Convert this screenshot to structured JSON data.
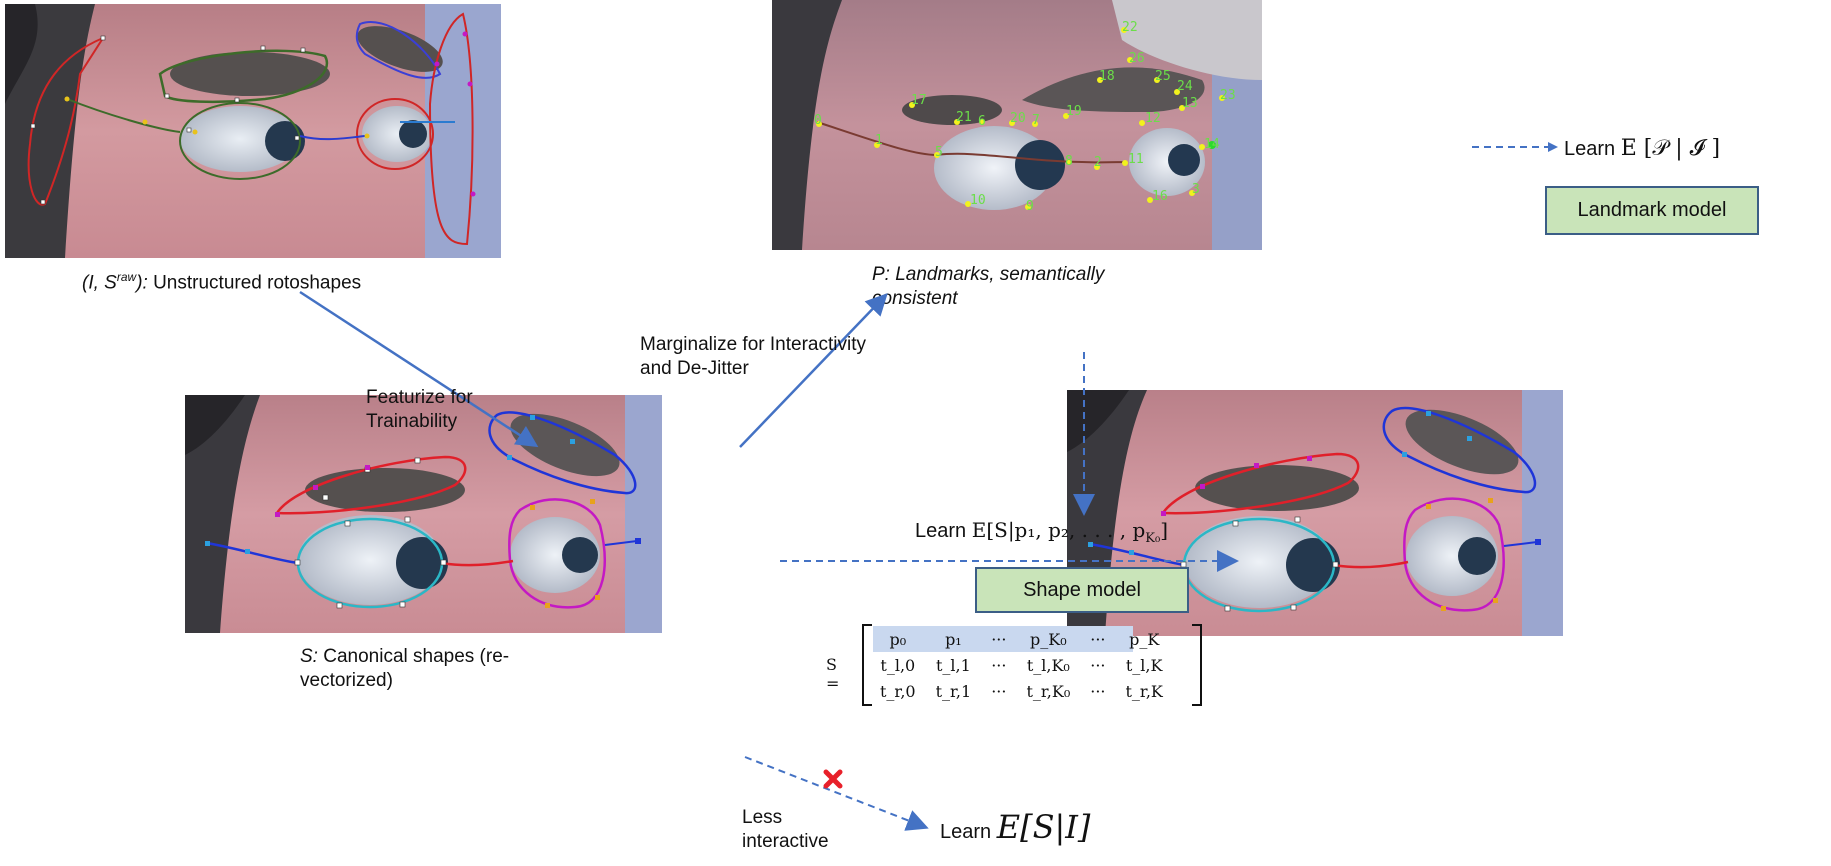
{
  "captions": {
    "raw_prefix": "(I, S",
    "raw_sup": "raw",
    "raw_suffix": "):",
    "raw_text": " Unstructured rotoshapes",
    "landmarks_line1": "P: Landmarks, semantically",
    "landmarks_line2": "consistent",
    "canonical_prefix": "S:",
    "canonical_line1": " Canonical shapes (re-",
    "canonical_line2": "vectorized)"
  },
  "arrow_labels": {
    "featurize_line1": "Featurize for",
    "featurize_line2": "Trainability",
    "marginalize_line1": "Marginalize for Interactivity",
    "marginalize_line2": "and De-Jitter",
    "less_line1": "Less",
    "less_line2": "interactive"
  },
  "learn_landmark": {
    "prefix": "Learn",
    "formula": "E [𝒫 | 𝓘 ]"
  },
  "learn_shape": {
    "prefix": "Learn",
    "formula": "E[S|p₁, p₂, . . . , p",
    "sub": "K₀",
    "close": "]"
  },
  "learn_direct": {
    "prefix": "Learn",
    "formula": "E[S|I]"
  },
  "boxes": {
    "landmark_model": "Landmark model",
    "shape_model": "Shape model"
  },
  "matrix": {
    "lhs": "S =",
    "rows": [
      [
        "p₀",
        "p₁",
        "···",
        "p_K₀",
        "···",
        "p_K"
      ],
      [
        "t_l,0",
        "t_l,1",
        "···",
        "t_l,K₀",
        "···",
        "t_l,K"
      ],
      [
        "t_r,0",
        "t_r,1",
        "···",
        "t_r,K₀",
        "···",
        "t_r,K"
      ]
    ]
  },
  "landmark_numbers": [
    "0",
    "1",
    "2",
    "3",
    "5",
    "6",
    "7",
    "8",
    "9",
    "10",
    "11",
    "12",
    "13",
    "14",
    "16",
    "17",
    "18",
    "19",
    "20",
    "21",
    "22",
    "23",
    "24",
    "25",
    "26"
  ],
  "colors": {
    "arrow_blue": "#4472c4",
    "box_green": "#c9e4b9",
    "box_border": "#3b5e86",
    "shape_red": "#e0202a",
    "shape_blue": "#1f35d8",
    "shape_cyan": "#2bb7c6",
    "shape_magenta": "#c419c4",
    "landmark_yellow": "#f2f21d",
    "landmark_green": "#2bdc2b",
    "reject_red": "#e8202a"
  }
}
